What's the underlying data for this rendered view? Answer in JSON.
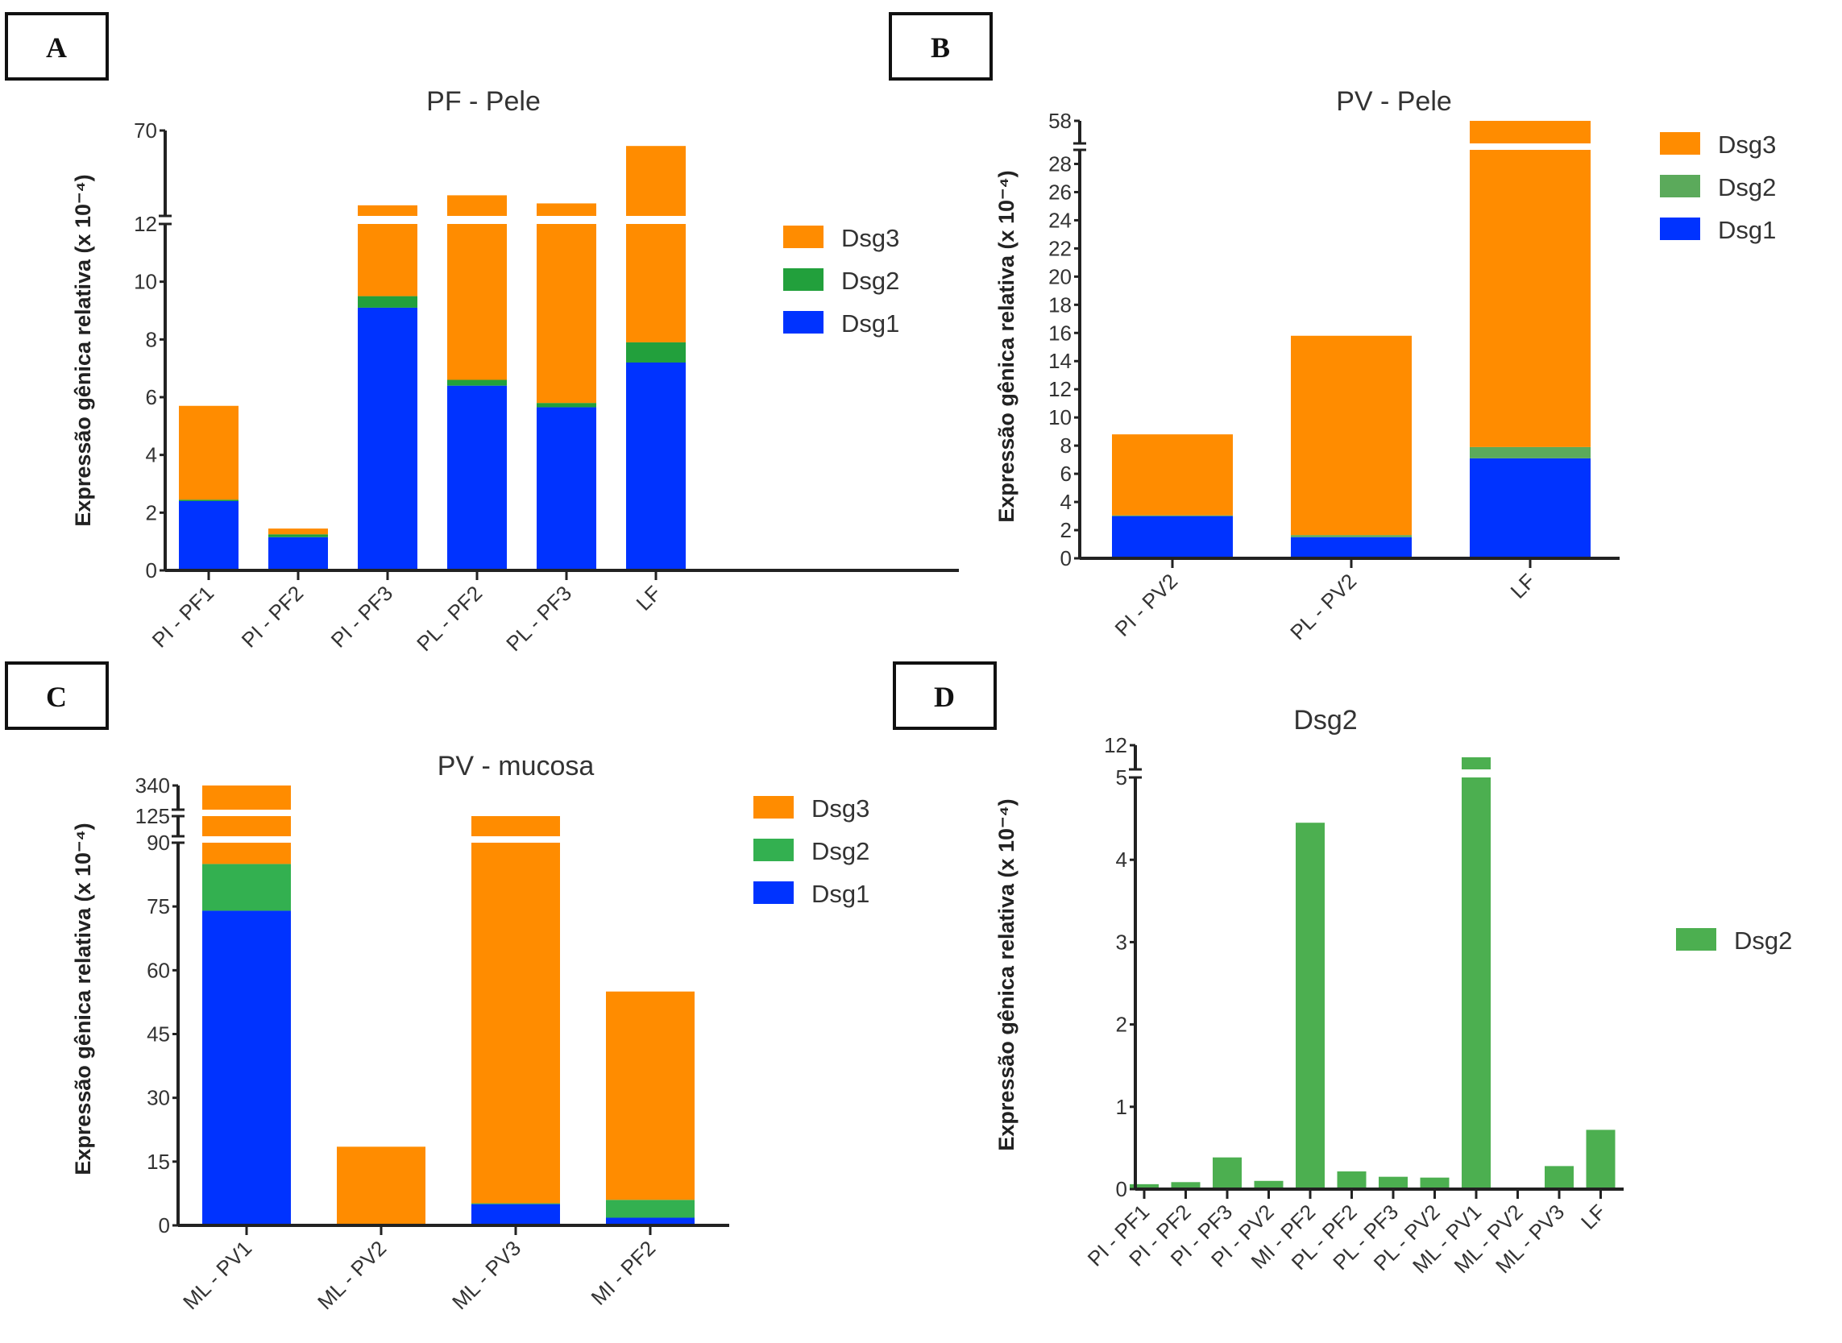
{
  "chart_data": [
    {
      "panel": "A",
      "type": "bar",
      "stacked": true,
      "title": "PF - Pele",
      "ylabel": "Expressão gênica relativa (x 10⁻⁴)",
      "xlabel": "",
      "axis_breaks": [
        [
          12,
          12
        ]
      ],
      "ylim": [
        0,
        70
      ],
      "yticks": [
        0,
        2,
        4,
        6,
        8,
        10,
        12,
        70
      ],
      "categories": [
        "PI - PF1",
        "PI - PF2",
        "PI - PF3",
        "PL - PF2",
        "PL - PF3",
        "LF"
      ],
      "series": [
        {
          "name": "Dsg1",
          "color": "#0033FF",
          "values": [
            2.4,
            1.15,
            9.1,
            6.4,
            5.65,
            7.2
          ]
        },
        {
          "name": "Dsg2",
          "color": "#22A03C",
          "values": [
            0.05,
            0.1,
            0.4,
            0.2,
            0.15,
            0.7
          ]
        },
        {
          "name": "Dsg3",
          "color": "#FF8C00",
          "values": [
            3.25,
            0.2,
            9.7,
            19.4,
            14.7,
            51.6
          ]
        }
      ],
      "legend": [
        "Dsg3",
        "Dsg2",
        "Dsg1"
      ],
      "legend_position": "right"
    },
    {
      "panel": "B",
      "type": "bar",
      "stacked": true,
      "title": "PV - Pele",
      "ylabel": "Expressão gênica relativa (x 10⁻⁴)",
      "xlabel": "",
      "axis_breaks": [
        [
          29,
          29
        ]
      ],
      "ylim": [
        0,
        58
      ],
      "yticks": [
        0,
        2,
        4,
        6,
        8,
        10,
        12,
        14,
        16,
        18,
        20,
        22,
        24,
        26,
        28,
        58
      ],
      "categories": [
        "PI - PV2",
        "PL - PV2",
        "LF"
      ],
      "series": [
        {
          "name": "Dsg1",
          "color": "#0033FF",
          "values": [
            3.0,
            1.5,
            7.1
          ]
        },
        {
          "name": "Dsg2",
          "color": "#5BAA5B",
          "values": [
            0.05,
            0.15,
            0.8
          ]
        },
        {
          "name": "Dsg3",
          "color": "#FF8C00",
          "values": [
            5.75,
            14.15,
            50.1
          ]
        }
      ],
      "legend": [
        "Dsg3",
        "Dsg2",
        "Dsg1"
      ],
      "legend_position": "right"
    },
    {
      "panel": "C",
      "type": "bar",
      "stacked": true,
      "title": "PV - mucosa",
      "ylabel": "Expressão gênica relativa (x 10⁻⁴)",
      "xlabel": "",
      "axis_breaks": [
        [
          90,
          90
        ],
        [
          125,
          125
        ]
      ],
      "ylim": [
        0,
        340
      ],
      "yticks": [
        0,
        15,
        30,
        45,
        60,
        75,
        90,
        125,
        340
      ],
      "categories": [
        "ML - PV1",
        "ML - PV2",
        "ML - PV3",
        "MI - PF2"
      ],
      "series": [
        {
          "name": "Dsg1",
          "color": "#0033FF",
          "values": [
            74,
            0.2,
            5,
            1.8
          ]
        },
        {
          "name": "Dsg2",
          "color": "#33B050",
          "values": [
            11,
            0.1,
            0.2,
            4.2
          ]
        },
        {
          "name": "Dsg3",
          "color": "#FF8C00",
          "values": [
            255,
            18.2,
            119.8,
            49
          ]
        }
      ],
      "legend": [
        "Dsg3",
        "Dsg2",
        "Dsg1"
      ],
      "legend_position": "right"
    },
    {
      "panel": "D",
      "type": "bar",
      "stacked": false,
      "title": "Dsg2",
      "ylabel": "Expressão gênica relativa (x 10⁻⁴)",
      "xlabel": "",
      "axis_breaks": [
        [
          5,
          5
        ]
      ],
      "ylim": [
        0,
        12
      ],
      "yticks": [
        0,
        1,
        2,
        3,
        4,
        5,
        12
      ],
      "categories": [
        "PI - PF1",
        "PI - PF2",
        "PI - PF3",
        "PI - PV2",
        "MI - PF2",
        "PL - PF2",
        "PL - PF3",
        "PL - PV2",
        "ML - PV1",
        "ML - PV2",
        "ML - PV3",
        "LF"
      ],
      "series": [
        {
          "name": "Dsg2",
          "color": "#4CAF50",
          "values": [
            0.06,
            0.085,
            0.385,
            0.1,
            4.45,
            0.215,
            0.15,
            0.14,
            8.5,
            0.01,
            0.28,
            0.72
          ]
        }
      ],
      "legend": [
        "Dsg2"
      ],
      "legend_position": "right"
    }
  ],
  "panels": {
    "A": {
      "label": "A"
    },
    "B": {
      "label": "B"
    },
    "C": {
      "label": "C"
    },
    "D": {
      "label": "D"
    }
  }
}
